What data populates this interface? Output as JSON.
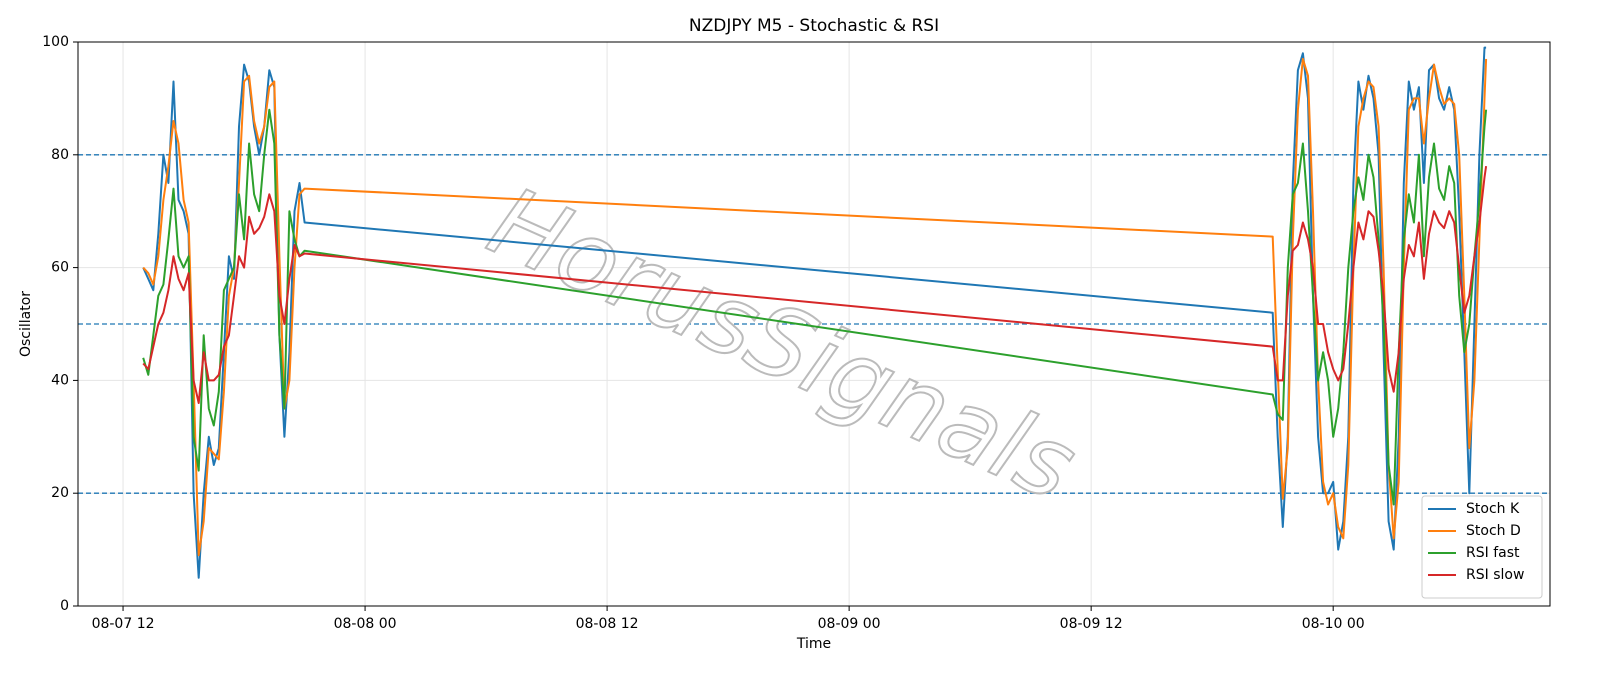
{
  "chart_data": {
    "type": "line",
    "title": "NZDJPY M5 - Stochastic & RSI",
    "x_label": "Time",
    "y_label": "Oscillator",
    "watermark": "HorusSignals",
    "x": [
      "08-07 13:00",
      "08-07 13:15",
      "08-07 13:30",
      "08-07 13:45",
      "08-07 14:00",
      "08-07 14:15",
      "08-07 14:30",
      "08-07 14:45",
      "08-07 15:00",
      "08-07 15:15",
      "08-07 15:30",
      "08-07 15:45",
      "08-07 16:00",
      "08-07 16:15",
      "08-07 16:30",
      "08-07 16:45",
      "08-07 17:00",
      "08-07 17:15",
      "08-07 17:30",
      "08-07 17:45",
      "08-07 18:00",
      "08-07 18:15",
      "08-07 18:30",
      "08-07 18:45",
      "08-07 19:00",
      "08-07 19:15",
      "08-07 19:30",
      "08-07 19:45",
      "08-07 20:00",
      "08-07 20:15",
      "08-07 20:30",
      "08-07 20:45",
      "08-07 21:00",
      "08-09 21:00",
      "08-09 21:15",
      "08-09 21:30",
      "08-09 21:45",
      "08-09 22:00",
      "08-09 22:15",
      "08-09 22:30",
      "08-09 22:45",
      "08-09 23:00",
      "08-09 23:15",
      "08-09 23:30",
      "08-09 23:45",
      "08-10 00:00",
      "08-10 00:15",
      "08-10 00:30",
      "08-10 00:45",
      "08-10 01:00",
      "08-10 01:15",
      "08-10 01:30",
      "08-10 01:45",
      "08-10 02:00",
      "08-10 02:15",
      "08-10 02:30",
      "08-10 02:45",
      "08-10 03:00",
      "08-10 03:15",
      "08-10 03:30",
      "08-10 03:45",
      "08-10 04:00",
      "08-10 04:15",
      "08-10 04:30",
      "08-10 04:45",
      "08-10 05:00",
      "08-10 05:15",
      "08-10 05:30",
      "08-10 05:45",
      "08-10 06:00",
      "08-10 06:15",
      "08-10 06:30",
      "08-10 06:45",
      "08-10 07:00",
      "08-10 07:15",
      "08-10 07:30",
      "08-10 07:35"
    ],
    "series": [
      {
        "name": "Stoch K",
        "color": "#1f77b4",
        "values": [
          60,
          58,
          56,
          66,
          80,
          75,
          93,
          72,
          70,
          66,
          20,
          5,
          20,
          30,
          25,
          28,
          45,
          62,
          58,
          85,
          96,
          93,
          85,
          80,
          85,
          95,
          92,
          48,
          30,
          45,
          70,
          75,
          68,
          52,
          30,
          14,
          30,
          75,
          95,
          98,
          90,
          55,
          30,
          20,
          20,
          22,
          10,
          15,
          30,
          75,
          93,
          88,
          94,
          90,
          80,
          45,
          15,
          10,
          30,
          75,
          93,
          88,
          92,
          75,
          95,
          96,
          90,
          88,
          92,
          88,
          70,
          45,
          20,
          50,
          80,
          99,
          99
        ]
      },
      {
        "name": "Stoch D",
        "color": "#ff7f0e",
        "values": [
          60,
          59,
          57,
          62,
          72,
          78,
          86,
          82,
          72,
          68,
          40,
          9,
          15,
          28,
          27,
          26,
          38,
          55,
          60,
          75,
          93,
          94,
          86,
          82,
          85,
          92,
          93,
          62,
          35,
          40,
          60,
          73,
          74,
          65.5,
          42,
          19,
          28,
          65,
          88,
          97,
          94,
          70,
          40,
          22,
          18,
          20,
          14,
          12,
          25,
          60,
          85,
          90,
          93,
          92,
          85,
          60,
          25,
          12,
          22,
          60,
          88,
          90,
          90,
          82,
          90,
          96,
          92,
          89,
          90,
          89,
          80,
          55,
          28,
          40,
          65,
          90,
          97
        ]
      },
      {
        "name": "RSI fast",
        "color": "#2ca02c",
        "values": [
          44,
          41,
          48,
          55,
          57,
          65,
          74,
          62,
          60,
          62,
          30,
          24,
          48,
          35,
          32,
          38,
          56,
          58,
          60,
          73,
          65,
          82,
          73,
          70,
          80,
          88,
          82,
          48,
          35,
          70,
          65,
          62,
          63,
          37.5,
          34,
          33,
          60,
          73,
          75,
          82,
          70,
          55,
          40,
          45,
          40,
          30,
          35,
          45,
          60,
          70,
          76,
          72,
          80,
          76,
          65,
          50,
          25,
          18,
          45,
          65,
          73,
          68,
          80,
          62,
          76,
          82,
          74,
          72,
          78,
          75,
          55,
          45,
          50,
          62,
          72,
          85,
          88
        ]
      },
      {
        "name": "RSI slow",
        "color": "#d62728",
        "values": [
          43,
          42,
          46,
          50,
          52,
          56,
          62,
          58,
          56,
          59,
          40,
          36,
          45,
          40,
          40,
          41,
          46,
          48,
          55,
          62,
          60,
          69,
          66,
          67,
          69,
          73,
          70,
          55,
          50,
          58,
          64,
          62,
          62.5,
          46,
          40,
          40,
          55,
          63,
          64,
          68,
          65,
          60,
          50,
          50,
          45,
          42,
          40,
          42,
          50,
          60,
          68,
          65,
          70,
          69,
          63,
          55,
          42,
          38,
          45,
          58,
          64,
          62,
          68,
          58,
          66,
          70,
          68,
          67,
          70,
          68,
          60,
          52,
          55,
          62,
          68,
          76,
          78
        ]
      }
    ],
    "xlim": [
      "08-07 09:46",
      "08-10 10:45"
    ],
    "xticks": [
      "08-07 12",
      "08-08 00",
      "08-08 12",
      "08-09 00",
      "08-09 12",
      "08-10 00"
    ],
    "ylim": [
      0,
      100
    ],
    "yticks": [
      0,
      20,
      40,
      60,
      80,
      100
    ],
    "hlines": [
      20,
      50,
      80
    ],
    "hline_color": "#1f77b4",
    "grid": true,
    "legend": "lower right"
  }
}
